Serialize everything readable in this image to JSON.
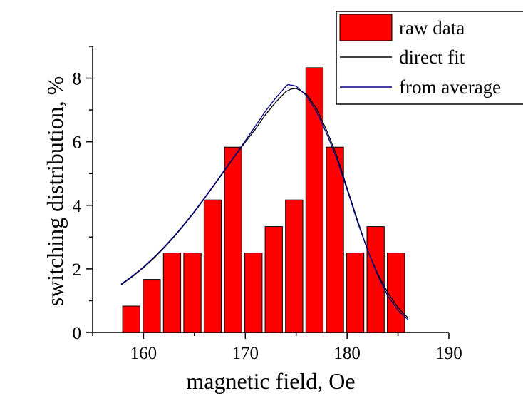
{
  "chart_data": {
    "type": "bar",
    "xlabel": "magnetic field, Oe",
    "ylabel": "switching distribution, %",
    "xlim": [
      155,
      190
    ],
    "ylim": [
      0,
      9
    ],
    "xticks": [
      160,
      170,
      180,
      190
    ],
    "yticks": [
      0,
      2,
      4,
      6,
      8
    ],
    "grid": false,
    "legend_position": "top-right",
    "bar_width": 1.7,
    "bars": {
      "name": "raw data",
      "color": "#ff0000",
      "x": [
        158.8,
        160.8,
        162.8,
        164.8,
        166.8,
        168.8,
        170.8,
        172.8,
        174.8,
        176.8,
        178.8,
        180.8,
        182.8,
        184.8
      ],
      "values": [
        0.83,
        1.67,
        2.5,
        2.5,
        4.17,
        5.83,
        2.5,
        3.33,
        4.17,
        8.33,
        5.83,
        2.5,
        3.33,
        2.5
      ]
    },
    "series": [
      {
        "name": "direct fit",
        "color": "#000000",
        "x": [
          157.8,
          159,
          160,
          161,
          162,
          163,
          164,
          165,
          166,
          167,
          168,
          169,
          170,
          171,
          172,
          173,
          174,
          174.5,
          175,
          176,
          177,
          178,
          179,
          180,
          181,
          182,
          183,
          184,
          185,
          186
        ],
        "y": [
          1.5,
          1.78,
          2.04,
          2.33,
          2.66,
          3.01,
          3.39,
          3.79,
          4.22,
          4.66,
          5.11,
          5.56,
          5.99,
          6.4,
          6.86,
          7.25,
          7.58,
          7.66,
          7.68,
          7.5,
          7.05,
          6.35,
          5.55,
          4.55,
          3.55,
          2.6,
          1.85,
          1.25,
          0.78,
          0.45
        ]
      },
      {
        "name": "from average",
        "color": "#00008b",
        "x": [
          157.8,
          159,
          160,
          161,
          162,
          163,
          164,
          165,
          166,
          167,
          168,
          169,
          170,
          171,
          172,
          173,
          174,
          174.2,
          175,
          176,
          177,
          178,
          179,
          180,
          181,
          182,
          183,
          184,
          185,
          186
        ],
        "y": [
          1.52,
          1.8,
          2.06,
          2.36,
          2.68,
          3.03,
          3.41,
          3.81,
          4.24,
          4.68,
          5.13,
          5.58,
          6.03,
          6.5,
          6.97,
          7.38,
          7.75,
          7.8,
          7.75,
          7.45,
          6.95,
          6.25,
          5.45,
          4.5,
          3.5,
          2.6,
          1.8,
          1.15,
          0.7,
          0.4
        ]
      }
    ]
  }
}
